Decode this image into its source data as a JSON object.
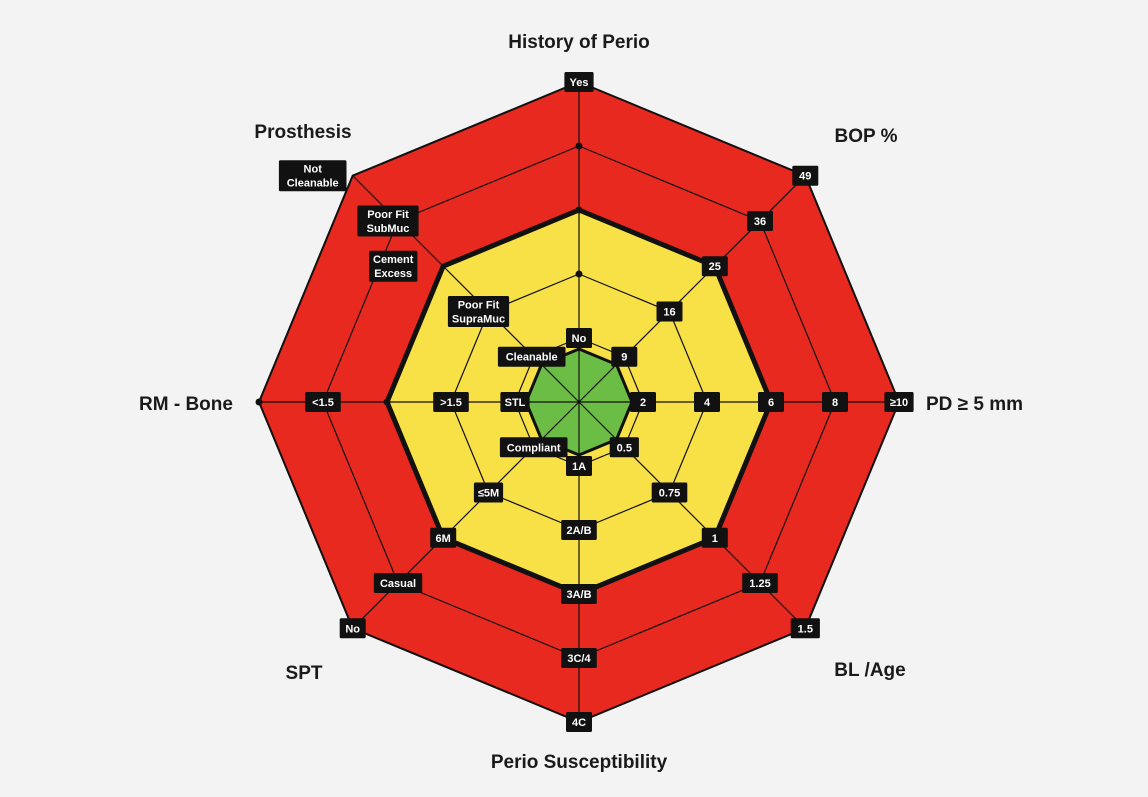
{
  "diagram": {
    "colors": {
      "outer_zone": "#e8291f",
      "middle_zone": "#f8e047",
      "inner_zone": "#6cbd45",
      "lines": "#111111",
      "label_bg": "#111111",
      "label_text": "#ffffff"
    },
    "axes": [
      {
        "id": "history-of-perio",
        "title": "History of Perio",
        "labels": [
          "No",
          "Yes"
        ]
      },
      {
        "id": "bop",
        "title": "BOP %",
        "labels": [
          "9",
          "16",
          "25",
          "36",
          "49"
        ]
      },
      {
        "id": "pd",
        "title": "PD ≥ 5 mm",
        "labels": [
          "2",
          "4",
          "6",
          "8",
          "≥10"
        ]
      },
      {
        "id": "bl-age",
        "title": "BL /Age",
        "labels": [
          "0.5",
          "0.75",
          "1",
          "1.25",
          "1.5"
        ]
      },
      {
        "id": "perio-susceptibility",
        "title": "Perio Susceptibility",
        "labels": [
          "1A",
          "2A/B",
          "3A/B",
          "3C/4",
          "4C"
        ]
      },
      {
        "id": "spt",
        "title": "SPT",
        "labels": [
          "Compliant",
          "≤5M",
          "6M",
          "Casual",
          "No"
        ]
      },
      {
        "id": "rm-bone",
        "title": "RM - Bone",
        "labels": [
          "STL",
          ">1.5",
          "<1.5"
        ]
      },
      {
        "id": "prosthesis",
        "title": "Prosthesis",
        "labels": [
          "Cleanable",
          "Poor Fit SupraMuc",
          "Cement Excess",
          "Poor Fit SubMuc",
          "Not Cleanable"
        ]
      }
    ]
  }
}
